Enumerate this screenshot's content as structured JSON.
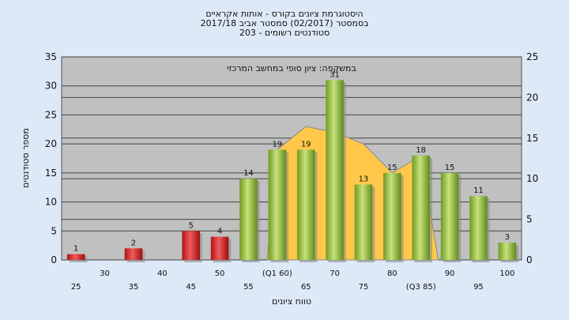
{
  "chart_data": {
    "type": "bar",
    "title_lines": [
      "היסטוגרמת ציונים בקורס - אותות אקראיים",
      "בסמסטר  (02/2017)  סמסטר אביב 2017/18",
      "סטודנטים רשומים - 203"
    ],
    "ylabel": "מספר סטודנטים",
    "xlabel": "טווח ציונים",
    "annotation": "במשקפה: ציון סופי במחשב המרכזי",
    "ylim": [
      0,
      35
    ],
    "y_ticks": [
      0,
      5,
      10,
      15,
      20,
      25,
      30,
      35
    ],
    "y2lim": [
      0,
      25
    ],
    "y2_ticks": [
      0,
      5,
      10,
      15,
      20,
      25
    ],
    "x_labels_row1": [
      "30",
      "40",
      "50",
      "(Q1 60)",
      "70",
      "80",
      "90",
      "100"
    ],
    "x_labels_row2": [
      "25",
      "35",
      "45",
      "55",
      "65",
      "75",
      "(Q3 85)",
      "95"
    ],
    "bins": [
      25,
      30,
      35,
      40,
      45,
      50,
      55,
      60,
      65,
      70,
      75,
      80,
      85,
      90,
      95,
      100
    ],
    "values": [
      1,
      0,
      2,
      0,
      5,
      4,
      14,
      19,
      19,
      31,
      13,
      15,
      18,
      15,
      11,
      3
    ],
    "area_values": [
      0,
      0,
      0,
      0,
      0,
      0,
      0,
      19,
      23,
      22,
      20,
      15,
      18,
      0,
      0,
      0
    ],
    "fail_threshold": 55,
    "colors": {
      "fail": "#d42020",
      "pass": "#8dbb3a",
      "area": "#ffc84a",
      "plot_bg": "#c0c0c0",
      "page_bg": "#dde9f7"
    }
  }
}
